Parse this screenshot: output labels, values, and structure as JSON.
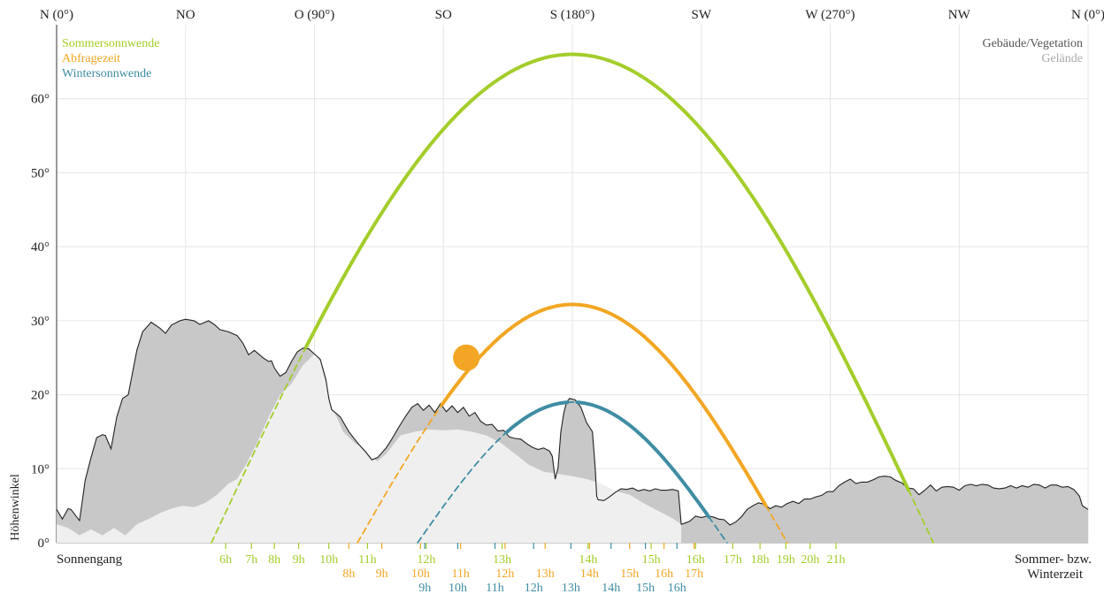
{
  "colors": {
    "summer": "#a3cd2a",
    "query": "#f2a623",
    "winter": "#3f8da3",
    "buildings": "#c8c8c8",
    "terrain": "#efefef",
    "grid": "#e6e6e6"
  },
  "legend_left": [
    {
      "label": "Sommersonnwende",
      "color": "#a3cd2a"
    },
    {
      "label": "Abfragezeit",
      "color": "#f2a623"
    },
    {
      "label": "Wintersonnwende",
      "color": "#3f8da3"
    }
  ],
  "legend_right": [
    {
      "label": "Gebäude/Vegetation",
      "color": "#555555"
    },
    {
      "label": "Gelände",
      "color": "#aaaaaa"
    }
  ],
  "footer": {
    "left": "Sonnengang",
    "right_line1": "Sommer- bzw.",
    "right_line2": "Winterzeit"
  },
  "chart_data": {
    "type": "line",
    "ylabel": "Höhenwinkel",
    "xlim": [
      0,
      360
    ],
    "ylim": [
      0,
      70
    ],
    "yticks": [
      {
        "value": 0,
        "label": "0°"
      },
      {
        "value": 10,
        "label": "10°"
      },
      {
        "value": 20,
        "label": "20°"
      },
      {
        "value": 30,
        "label": "30°"
      },
      {
        "value": 40,
        "label": "40°"
      },
      {
        "value": 50,
        "label": "50°"
      },
      {
        "value": 60,
        "label": "60°"
      }
    ],
    "xticks": [
      {
        "value": 0,
        "label": "N (0°)"
      },
      {
        "value": 45,
        "label": "NO"
      },
      {
        "value": 90,
        "label": "O (90°)"
      },
      {
        "value": 135,
        "label": "SO"
      },
      {
        "value": 180,
        "label": "S (180°)"
      },
      {
        "value": 225,
        "label": "SW"
      },
      {
        "value": 270,
        "label": "W (270°)"
      },
      {
        "value": 315,
        "label": "NW"
      },
      {
        "value": 360,
        "label": "N (0°)"
      }
    ],
    "sun_arcs": [
      {
        "name": "Sommersonnwende",
        "color": "#a3cd2a",
        "rise": 54,
        "set": 306,
        "max_alt": 66
      },
      {
        "name": "Abfragezeit",
        "color": "#f2a623",
        "rise": 105,
        "set": 255,
        "max_alt": 32.2
      },
      {
        "name": "Wintersonnwende",
        "color": "#3f8da3",
        "rise": 126,
        "set": 234,
        "max_alt": 19
      }
    ],
    "current_sun": {
      "azimuth": 143,
      "altitude": 25
    },
    "buildings_horizon": [
      [
        0,
        4.5
      ],
      [
        2,
        3.2
      ],
      [
        4,
        4.6
      ],
      [
        5,
        4.5
      ],
      [
        8,
        3.0
      ],
      [
        10,
        8.5
      ],
      [
        12,
        11.5
      ],
      [
        14,
        14.2
      ],
      [
        16,
        14.6
      ],
      [
        17,
        14.5
      ],
      [
        19,
        12.7
      ],
      [
        21,
        17.0
      ],
      [
        23,
        19.5
      ],
      [
        25,
        20.0
      ],
      [
        28,
        26.0
      ],
      [
        30,
        28.5
      ],
      [
        33,
        29.8
      ],
      [
        36,
        29.0
      ],
      [
        38,
        28.3
      ],
      [
        40,
        29.4
      ],
      [
        43,
        30.0
      ],
      [
        45,
        30.2
      ],
      [
        48,
        30.0
      ],
      [
        50,
        29.5
      ],
      [
        53,
        30.0
      ],
      [
        55,
        29.5
      ],
      [
        57,
        28.8
      ],
      [
        60,
        28.5
      ],
      [
        63,
        28.0
      ],
      [
        65,
        27.0
      ],
      [
        67,
        25.4
      ],
      [
        69,
        26.0
      ],
      [
        72,
        25.0
      ],
      [
        74,
        24.5
      ],
      [
        75,
        24.6
      ],
      [
        76,
        23.6
      ],
      [
        78,
        22.5
      ],
      [
        80,
        23.0
      ],
      [
        82,
        24.5
      ],
      [
        84,
        25.8
      ],
      [
        86,
        26.3
      ],
      [
        88,
        26.2
      ],
      [
        90,
        25.5
      ],
      [
        92,
        24.8
      ],
      [
        94,
        22.0
      ],
      [
        95,
        19.5
      ],
      [
        96,
        18.0
      ],
      [
        99,
        17.0
      ],
      [
        102,
        15.0
      ],
      [
        105,
        13.5
      ],
      [
        108,
        12.2
      ],
      [
        110,
        11.2
      ],
      [
        112,
        11.5
      ],
      [
        115,
        12.8
      ],
      [
        117,
        14.0
      ],
      [
        120,
        16.0
      ],
      [
        122,
        17.2
      ],
      [
        124,
        18.3
      ],
      [
        126,
        18.8
      ],
      [
        128,
        17.9
      ],
      [
        130,
        18.6
      ],
      [
        132,
        17.6
      ],
      [
        134,
        18.8
      ],
      [
        136,
        17.7
      ],
      [
        138,
        18.5
      ],
      [
        140,
        17.6
      ],
      [
        142,
        18.3
      ],
      [
        144,
        17.1
      ],
      [
        146,
        17.6
      ],
      [
        148,
        16.4
      ],
      [
        150,
        15.9
      ],
      [
        152,
        16.0
      ],
      [
        154,
        15.1
      ],
      [
        156,
        15.2
      ],
      [
        158,
        14.3
      ],
      [
        160,
        14.1
      ],
      [
        162,
        14.0
      ],
      [
        164,
        13.4
      ],
      [
        166,
        12.9
      ],
      [
        168,
        12.6
      ],
      [
        170,
        12.8
      ],
      [
        172,
        12.4
      ],
      [
        173,
        11.7
      ],
      [
        174,
        8.6
      ],
      [
        175,
        10.1
      ],
      [
        176,
        15.0
      ],
      [
        177,
        17.5
      ],
      [
        178,
        19.0
      ],
      [
        179,
        19.5
      ],
      [
        181,
        19.3
      ],
      [
        183,
        18.3
      ],
      [
        185,
        16.2
      ],
      [
        187,
        15.0
      ],
      [
        188,
        10.0
      ],
      [
        188.5,
        6.3
      ],
      [
        189,
        5.8
      ],
      [
        191,
        5.7
      ],
      [
        193,
        6.2
      ],
      [
        195,
        6.8
      ],
      [
        197,
        7.3
      ],
      [
        199,
        7.2
      ],
      [
        201,
        7.4
      ],
      [
        203,
        7.0
      ],
      [
        205,
        7.2
      ],
      [
        207,
        7.0
      ],
      [
        209,
        7.3
      ],
      [
        211,
        7.1
      ],
      [
        213,
        7.1
      ],
      [
        215,
        7.2
      ],
      [
        217,
        7.0
      ],
      [
        218,
        2.5
      ],
      [
        219,
        2.6
      ],
      [
        221,
        2.9
      ],
      [
        223,
        3.6
      ],
      [
        225,
        3.4
      ],
      [
        227,
        3.6
      ],
      [
        229,
        3.5
      ],
      [
        231,
        3.2
      ],
      [
        233,
        3.1
      ],
      [
        235,
        2.4
      ],
      [
        237,
        2.8
      ],
      [
        239,
        3.5
      ],
      [
        241,
        4.5
      ],
      [
        243,
        5.0
      ],
      [
        245,
        5.4
      ],
      [
        247,
        5.2
      ],
      [
        249,
        4.6
      ],
      [
        251,
        5.0
      ],
      [
        253,
        4.8
      ],
      [
        255,
        5.3
      ],
      [
        257,
        5.6
      ],
      [
        259,
        5.3
      ],
      [
        261,
        5.9
      ],
      [
        263,
        5.9
      ],
      [
        265,
        6.2
      ],
      [
        267,
        6.4
      ],
      [
        269,
        6.9
      ],
      [
        271,
        6.9
      ],
      [
        273,
        7.7
      ],
      [
        275,
        8.2
      ],
      [
        277,
        8.6
      ],
      [
        279,
        8.0
      ],
      [
        281,
        8.2
      ],
      [
        283,
        8.2
      ],
      [
        285,
        8.5
      ],
      [
        287,
        8.9
      ],
      [
        289,
        9.0
      ],
      [
        291,
        8.9
      ],
      [
        293,
        8.4
      ],
      [
        295,
        8.1
      ],
      [
        297,
        7.4
      ],
      [
        299,
        7.3
      ],
      [
        301,
        6.5
      ],
      [
        303,
        7.1
      ],
      [
        305,
        7.8
      ],
      [
        307,
        7.0
      ],
      [
        309,
        7.5
      ],
      [
        311,
        7.6
      ],
      [
        313,
        7.5
      ],
      [
        315,
        7.1
      ],
      [
        317,
        7.7
      ],
      [
        319,
        7.9
      ],
      [
        321,
        7.7
      ],
      [
        323,
        7.9
      ],
      [
        325,
        7.8
      ],
      [
        327,
        7.4
      ],
      [
        329,
        7.3
      ],
      [
        331,
        7.4
      ],
      [
        333,
        7.7
      ],
      [
        335,
        7.4
      ],
      [
        337,
        7.7
      ],
      [
        339,
        7.5
      ],
      [
        341,
        7.9
      ],
      [
        343,
        7.8
      ],
      [
        345,
        7.4
      ],
      [
        347,
        7.8
      ],
      [
        349,
        7.8
      ],
      [
        351,
        7.5
      ],
      [
        353,
        7.6
      ],
      [
        355,
        7.2
      ],
      [
        357,
        6.3
      ],
      [
        358,
        5.0
      ],
      [
        360,
        4.5
      ]
    ],
    "terrain_horizon": [
      [
        0,
        2.5
      ],
      [
        4,
        2.0
      ],
      [
        8,
        1.0
      ],
      [
        12,
        1.8
      ],
      [
        16,
        1.0
      ],
      [
        20,
        2.0
      ],
      [
        24,
        1.0
      ],
      [
        28,
        2.5
      ],
      [
        32,
        3.2
      ],
      [
        36,
        4.0
      ],
      [
        40,
        4.6
      ],
      [
        44,
        5.0
      ],
      [
        48,
        4.8
      ],
      [
        52,
        5.4
      ],
      [
        56,
        6.5
      ],
      [
        60,
        8.0
      ],
      [
        63,
        8.6
      ],
      [
        66,
        10.5
      ],
      [
        70,
        13.5
      ],
      [
        74,
        17.0
      ],
      [
        78,
        20.0
      ],
      [
        82,
        21.5
      ],
      [
        86,
        24.0
      ],
      [
        90,
        25.5
      ],
      [
        92,
        24.5
      ],
      [
        94,
        21.5
      ],
      [
        96,
        18.5
      ],
      [
        100,
        15.0
      ],
      [
        104,
        13.5
      ],
      [
        108,
        12.5
      ],
      [
        110,
        11.5
      ],
      [
        112,
        11.0
      ],
      [
        115,
        12.0
      ],
      [
        118,
        13.5
      ],
      [
        120,
        14.5
      ],
      [
        125,
        15.0
      ],
      [
        130,
        15.3
      ],
      [
        135,
        15.2
      ],
      [
        140,
        15.3
      ],
      [
        145,
        15.0
      ],
      [
        150,
        14.5
      ],
      [
        155,
        13.5
      ],
      [
        160,
        12.0
      ],
      [
        165,
        10.5
      ],
      [
        170,
        9.6
      ],
      [
        175,
        9.3
      ],
      [
        180,
        9.0
      ],
      [
        185,
        8.6
      ],
      [
        190,
        8.0
      ],
      [
        195,
        7.0
      ],
      [
        200,
        6.5
      ],
      [
        205,
        5.3
      ],
      [
        210,
        4.3
      ],
      [
        215,
        3.3
      ],
      [
        218,
        2.5
      ]
    ],
    "summer_hours": [
      {
        "label": "6h",
        "azimuth": 59
      },
      {
        "label": "7h",
        "azimuth": 68
      },
      {
        "label": "8h",
        "azimuth": 76
      },
      {
        "label": "9h",
        "azimuth": 84.5
      },
      {
        "label": "10h",
        "azimuth": 95
      },
      {
        "label": "11h",
        "azimuth": 108.5
      },
      {
        "label": "12h",
        "azimuth": 129
      },
      {
        "label": "13h",
        "azimuth": 155.5
      },
      {
        "label": "14h",
        "azimuth": 185.5
      },
      {
        "label": "15h",
        "azimuth": 207.5
      },
      {
        "label": "16h",
        "azimuth": 223
      },
      {
        "label": "17h",
        "azimuth": 236
      },
      {
        "label": "18h",
        "azimuth": 245.5
      },
      {
        "label": "19h",
        "azimuth": 254.5
      },
      {
        "label": "20h",
        "azimuth": 263
      },
      {
        "label": "21h",
        "azimuth": 272
      }
    ],
    "query_hours": [
      {
        "label": "8h",
        "azimuth": 102
      },
      {
        "label": "9h",
        "azimuth": 113.5
      },
      {
        "label": "10h",
        "azimuth": 127
      },
      {
        "label": "11h",
        "azimuth": 141
      },
      {
        "label": "12h",
        "azimuth": 156.5
      },
      {
        "label": "13h",
        "azimuth": 170.5
      },
      {
        "label": "14h",
        "azimuth": 186
      },
      {
        "label": "15h",
        "azimuth": 200
      },
      {
        "label": "16h",
        "azimuth": 212
      },
      {
        "label": "17h",
        "azimuth": 222.5
      }
    ],
    "winter_hours": [
      {
        "label": "9h",
        "azimuth": 128.5
      },
      {
        "label": "10h",
        "azimuth": 140
      },
      {
        "label": "11h",
        "azimuth": 153
      },
      {
        "label": "12h",
        "azimuth": 166.5
      },
      {
        "label": "13h",
        "azimuth": 179.5
      },
      {
        "label": "14h",
        "azimuth": 193.5
      },
      {
        "label": "15h",
        "azimuth": 205.5
      },
      {
        "label": "16h",
        "azimuth": 216.5
      }
    ]
  }
}
